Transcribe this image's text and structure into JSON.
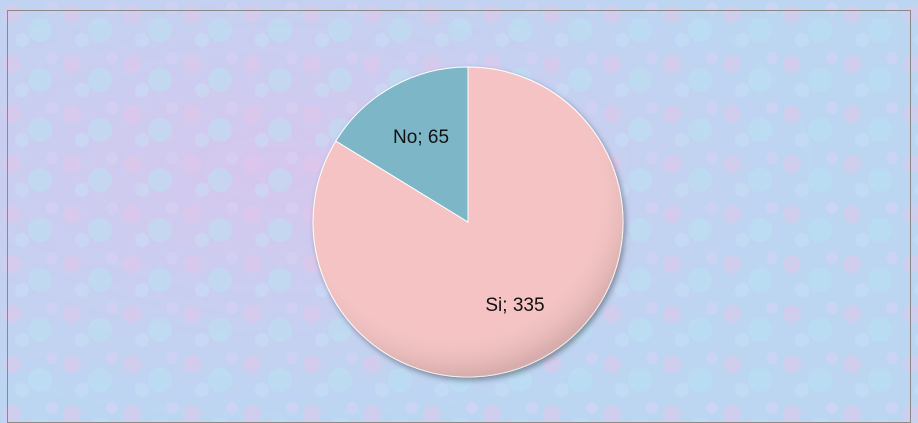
{
  "chart_data": {
    "type": "pie",
    "categories": [
      "Si",
      "No"
    ],
    "values": [
      335,
      65
    ],
    "value_labels": [
      "Si; 335",
      "No; 65"
    ],
    "colors": [
      "#f5c3c3",
      "#7db6c6"
    ]
  }
}
